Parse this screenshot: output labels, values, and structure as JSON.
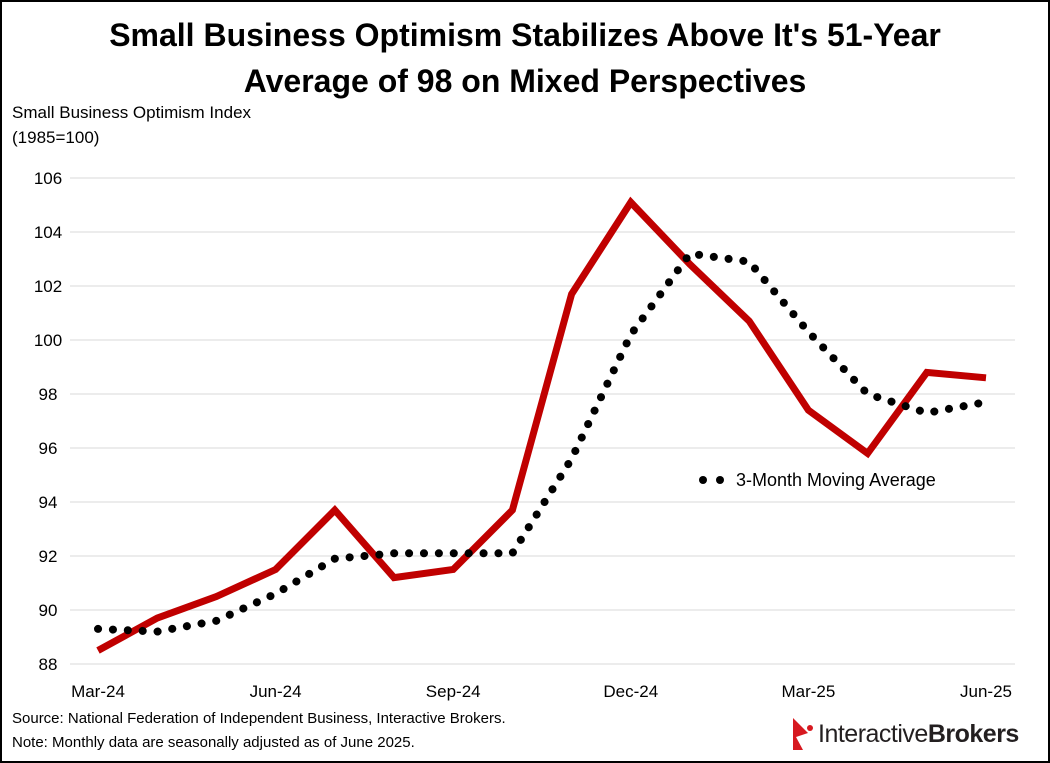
{
  "chart_data": {
    "type": "line",
    "title_lines": [
      "Small Business Optimism Stabilizes Above It's 51-Year",
      "Average of 98 on Mixed Perspectives"
    ],
    "ylabel_lines": [
      "Small Business Optimism Index",
      "(1985=100)"
    ],
    "xlabel": "",
    "x": [
      "Mar-24",
      "Apr-24",
      "May-24",
      "Jun-24",
      "Jul-24",
      "Aug-24",
      "Sep-24",
      "Oct-24",
      "Nov-24",
      "Dec-24",
      "Jan-25",
      "Feb-25",
      "Mar-25",
      "Apr-25",
      "May-25",
      "Jun-25"
    ],
    "x_tick_labels": [
      "Mar-24",
      "Jun-24",
      "Sep-24",
      "Dec-24",
      "Mar-25",
      "Jun-25"
    ],
    "ylim": [
      88,
      106
    ],
    "y_ticks": [
      88,
      90,
      92,
      94,
      96,
      98,
      100,
      102,
      104,
      106
    ],
    "grid": "horizontal",
    "series": [
      {
        "name": "Small Business Optimism Index",
        "style": "solid",
        "color": "#c00000",
        "values": [
          88.5,
          89.7,
          90.5,
          91.5,
          93.7,
          91.2,
          91.5,
          93.7,
          101.7,
          105.1,
          102.8,
          100.7,
          97.4,
          95.8,
          98.8,
          98.6
        ]
      },
      {
        "name": "3-Month Moving Average",
        "style": "dotted",
        "color": "#000000",
        "values": [
          89.3,
          89.2,
          89.6,
          90.6,
          91.9,
          92.1,
          92.1,
          92.1,
          95.6,
          100.2,
          103.2,
          102.9,
          100.3,
          98.0,
          97.3,
          97.7
        ]
      }
    ],
    "legend": {
      "entries": [
        "3-Month Moving Average"
      ],
      "placement": "center-right"
    }
  },
  "footnotes": {
    "source": "Source: National Federation of Independent  Business, Interactive Brokers.",
    "note": "Note: Monthly data are seasonally adjusted as of June 2025."
  },
  "logo": {
    "text_regular": "Interactive",
    "text_bold": "Brokers",
    "icon": "interactive-brokers-flag-icon",
    "accent_color": "#d71920"
  }
}
